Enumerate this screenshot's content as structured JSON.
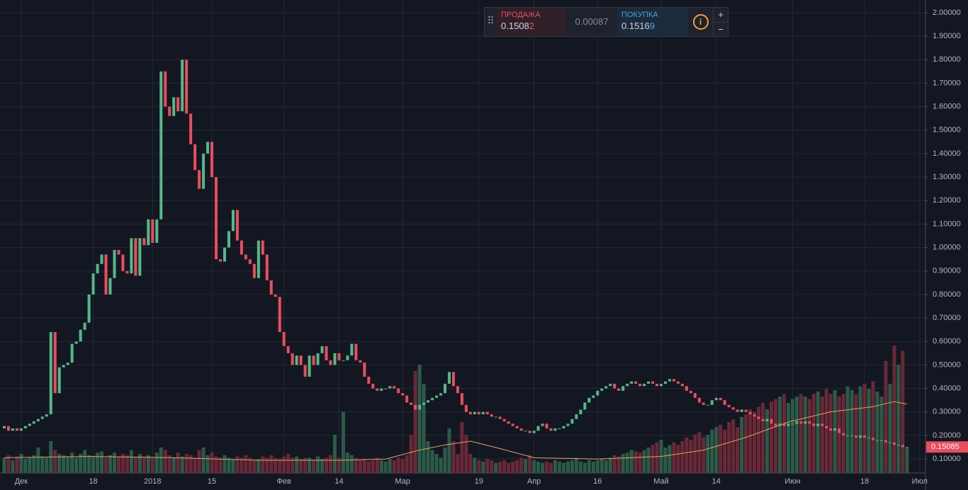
{
  "chart_data": {
    "type": "candlestick",
    "ylim": [
      0.04,
      2.054
    ],
    "yticks": [
      {
        "value": 0.1,
        "label": "0.10000"
      },
      {
        "value": 0.2,
        "label": "0.20000"
      },
      {
        "value": 0.3,
        "label": "0.30000"
      },
      {
        "value": 0.4,
        "label": "0.40000"
      },
      {
        "value": 0.5,
        "label": "0.50000"
      },
      {
        "value": 0.6,
        "label": "0.60000"
      },
      {
        "value": 0.7,
        "label": "0.70000"
      },
      {
        "value": 0.8,
        "label": "0.80000"
      },
      {
        "value": 0.9,
        "label": "0.90000"
      },
      {
        "value": 1.0,
        "label": "1.00000"
      },
      {
        "value": 1.1,
        "label": "1.10000"
      },
      {
        "value": 1.2,
        "label": "1.20000"
      },
      {
        "value": 1.3,
        "label": "1.30000"
      },
      {
        "value": 1.4,
        "label": "1.40000"
      },
      {
        "value": 1.5,
        "label": "1.50000"
      },
      {
        "value": 1.6,
        "label": "1.60000"
      },
      {
        "value": 1.7,
        "label": "1.70000"
      },
      {
        "value": 1.8,
        "label": "1.80000"
      },
      {
        "value": 1.9,
        "label": "1.90000"
      },
      {
        "value": 2.0,
        "label": "2.00000"
      }
    ],
    "xlim": [
      -1,
      217.2
    ],
    "xticks": [
      {
        "value": 4,
        "label": "Дек"
      },
      {
        "value": 21,
        "label": "18"
      },
      {
        "value": 35,
        "label": "2018"
      },
      {
        "value": 49,
        "label": "15"
      },
      {
        "value": 66,
        "label": "Фев"
      },
      {
        "value": 79,
        "label": "14"
      },
      {
        "value": 94,
        "label": "Мар"
      },
      {
        "value": 112,
        "label": "19"
      },
      {
        "value": 125,
        "label": "Апр"
      },
      {
        "value": 140,
        "label": "16"
      },
      {
        "value": 155,
        "label": "Май"
      },
      {
        "value": 168,
        "label": "14"
      },
      {
        "value": 186,
        "label": "Июн"
      },
      {
        "value": 203,
        "label": "18"
      },
      {
        "value": 216,
        "label": "Июл"
      }
    ],
    "grid": true,
    "up_color": "#53b987",
    "down_color": "#eb4d5c",
    "volume_up_color": "#2b5b48",
    "volume_down_color": "#6a2836",
    "ma_color": "#e8a05a",
    "close": [
      0.24,
      0.22,
      0.23,
      0.22,
      0.23,
      0.24,
      0.25,
      0.26,
      0.27,
      0.28,
      0.29,
      0.64,
      0.38,
      0.49,
      0.5,
      0.51,
      0.59,
      0.6,
      0.65,
      0.68,
      0.8,
      0.89,
      0.93,
      0.97,
      0.8,
      0.87,
      0.99,
      0.97,
      0.9,
      0.89,
      1.04,
      0.88,
      1.04,
      1.01,
      1.12,
      1.02,
      1.12,
      1.75,
      1.6,
      1.56,
      1.64,
      1.58,
      1.8,
      1.57,
      1.44,
      1.33,
      1.25,
      1.4,
      1.45,
      1.3,
      0.95,
      0.94,
      1.0,
      1.07,
      1.16,
      1.03,
      0.97,
      0.95,
      0.93,
      0.87,
      1.03,
      0.97,
      0.86,
      0.8,
      0.79,
      0.64,
      0.58,
      0.55,
      0.5,
      0.54,
      0.5,
      0.45,
      0.54,
      0.5,
      0.55,
      0.58,
      0.52,
      0.5,
      0.55,
      0.52,
      0.52,
      0.54,
      0.59,
      0.52,
      0.51,
      0.45,
      0.42,
      0.4,
      0.39,
      0.4,
      0.4,
      0.41,
      0.4,
      0.38,
      0.37,
      0.34,
      0.33,
      0.31,
      0.33,
      0.34,
      0.35,
      0.36,
      0.37,
      0.38,
      0.42,
      0.47,
      0.41,
      0.38,
      0.33,
      0.3,
      0.29,
      0.3,
      0.29,
      0.3,
      0.29,
      0.28,
      0.28,
      0.27,
      0.26,
      0.25,
      0.24,
      0.23,
      0.22,
      0.22,
      0.21,
      0.22,
      0.24,
      0.25,
      0.23,
      0.22,
      0.23,
      0.23,
      0.24,
      0.25,
      0.27,
      0.29,
      0.31,
      0.34,
      0.36,
      0.37,
      0.39,
      0.4,
      0.41,
      0.42,
      0.4,
      0.39,
      0.41,
      0.42,
      0.43,
      0.42,
      0.41,
      0.42,
      0.43,
      0.42,
      0.41,
      0.42,
      0.43,
      0.44,
      0.43,
      0.42,
      0.41,
      0.39,
      0.38,
      0.36,
      0.34,
      0.33,
      0.33,
      0.35,
      0.36,
      0.35,
      0.33,
      0.32,
      0.31,
      0.3,
      0.31,
      0.3,
      0.29,
      0.28,
      0.27,
      0.26,
      0.27,
      0.25,
      0.24,
      0.25,
      0.24,
      0.25,
      0.25,
      0.26,
      0.25,
      0.26,
      0.25,
      0.24,
      0.25,
      0.24,
      0.23,
      0.22,
      0.23,
      0.21,
      0.2,
      0.2,
      0.2,
      0.19,
      0.2,
      0.19,
      0.19,
      0.18,
      0.18,
      0.18,
      0.17,
      0.17,
      0.16,
      0.16,
      0.15,
      0.15
    ],
    "open": [
      0.23,
      0.24,
      0.22,
      0.23,
      0.22,
      0.23,
      0.24,
      0.25,
      0.26,
      0.27,
      0.28,
      0.29,
      0.64,
      0.38,
      0.49,
      0.5,
      0.51,
      0.59,
      0.6,
      0.65,
      0.68,
      0.8,
      0.89,
      0.93,
      0.97,
      0.8,
      0.87,
      0.99,
      0.97,
      0.9,
      0.89,
      1.04,
      0.88,
      1.04,
      1.01,
      1.12,
      1.02,
      1.12,
      1.75,
      1.6,
      1.56,
      1.64,
      1.58,
      1.8,
      1.57,
      1.44,
      1.33,
      1.25,
      1.4,
      1.45,
      1.3,
      0.95,
      0.94,
      1.0,
      1.07,
      1.16,
      1.03,
      0.97,
      0.95,
      0.93,
      0.87,
      1.03,
      0.97,
      0.86,
      0.8,
      0.79,
      0.64,
      0.58,
      0.55,
      0.5,
      0.54,
      0.5,
      0.45,
      0.54,
      0.5,
      0.55,
      0.58,
      0.52,
      0.5,
      0.55,
      0.52,
      0.52,
      0.54,
      0.59,
      0.52,
      0.51,
      0.45,
      0.42,
      0.4,
      0.39,
      0.4,
      0.4,
      0.41,
      0.4,
      0.38,
      0.37,
      0.34,
      0.33,
      0.31,
      0.33,
      0.34,
      0.35,
      0.36,
      0.37,
      0.38,
      0.42,
      0.47,
      0.41,
      0.38,
      0.33,
      0.3,
      0.29,
      0.3,
      0.29,
      0.3,
      0.29,
      0.28,
      0.28,
      0.27,
      0.26,
      0.25,
      0.24,
      0.23,
      0.22,
      0.22,
      0.21,
      0.22,
      0.24,
      0.25,
      0.23,
      0.22,
      0.23,
      0.23,
      0.24,
      0.25,
      0.27,
      0.29,
      0.31,
      0.34,
      0.36,
      0.37,
      0.39,
      0.4,
      0.41,
      0.42,
      0.4,
      0.39,
      0.41,
      0.42,
      0.43,
      0.42,
      0.41,
      0.42,
      0.43,
      0.42,
      0.41,
      0.42,
      0.43,
      0.44,
      0.43,
      0.42,
      0.41,
      0.39,
      0.38,
      0.36,
      0.34,
      0.33,
      0.33,
      0.35,
      0.36,
      0.35,
      0.33,
      0.32,
      0.31,
      0.3,
      0.31,
      0.3,
      0.29,
      0.28,
      0.27,
      0.26,
      0.27,
      0.25,
      0.24,
      0.25,
      0.24,
      0.25,
      0.25,
      0.26,
      0.25,
      0.26,
      0.25,
      0.24,
      0.25,
      0.24,
      0.23,
      0.22,
      0.23,
      0.21,
      0.2,
      0.2,
      0.2,
      0.19,
      0.2,
      0.19,
      0.19,
      0.18,
      0.18,
      0.18,
      0.17,
      0.17,
      0.16,
      0.16,
      0.15
    ],
    "vlim": [
      0,
      100
    ],
    "volume": [
      12,
      14,
      10,
      13,
      15,
      11,
      12,
      14,
      20,
      13,
      12,
      25,
      18,
      15,
      14,
      13,
      16,
      12,
      15,
      18,
      14,
      13,
      16,
      17,
      12,
      14,
      16,
      13,
      15,
      14,
      18,
      12,
      15,
      13,
      14,
      12,
      16,
      20,
      18,
      14,
      12,
      16,
      13,
      15,
      14,
      12,
      18,
      20,
      14,
      16,
      13,
      12,
      14,
      12,
      11,
      13,
      12,
      14,
      12,
      10,
      11,
      13,
      12,
      14,
      12,
      11,
      13,
      15,
      12,
      13,
      11,
      12,
      12,
      10,
      13,
      11,
      12,
      14,
      30,
      12,
      48,
      16,
      14,
      12,
      10,
      11,
      9,
      10,
      12,
      10,
      9,
      11,
      10,
      12,
      11,
      14,
      30,
      80,
      85,
      70,
      25,
      18,
      15,
      12,
      20,
      35,
      25,
      15,
      40,
      30,
      15,
      12,
      10,
      9,
      11,
      10,
      8,
      9,
      10,
      8,
      9,
      10,
      12,
      11,
      14,
      10,
      9,
      8,
      9,
      8,
      10,
      9,
      8,
      9,
      10,
      12,
      9,
      8,
      10,
      9,
      10,
      11,
      10,
      12,
      14,
      13,
      15,
      16,
      18,
      17,
      16,
      18,
      20,
      22,
      24,
      26,
      20,
      22,
      24,
      22,
      25,
      28,
      26,
      30,
      32,
      28,
      30,
      34,
      36,
      38,
      34,
      40,
      42,
      36,
      44,
      46,
      50,
      48,
      52,
      55,
      50,
      56,
      58,
      60,
      62,
      55,
      58,
      60,
      62,
      60,
      58,
      62,
      64,
      60,
      66,
      62,
      65,
      60,
      62,
      68,
      65,
      62,
      68,
      70,
      66,
      72,
      64,
      60,
      88,
      70,
      100,
      85,
      96,
      20
    ],
    "volume_ma": {
      "x": [
        0,
        20,
        40,
        60,
        80,
        90,
        98,
        104,
        110,
        116,
        125,
        140,
        155,
        165,
        175,
        185,
        195,
        205,
        210,
        213
      ],
      "values": [
        12,
        13,
        12,
        10,
        10,
        11,
        18,
        22,
        25,
        20,
        12,
        11,
        13,
        18,
        28,
        40,
        48,
        52,
        56,
        54
      ]
    },
    "last_price": 0.15085,
    "ticket": {
      "sell_label": "ПРОДАЖА",
      "sell_main": "0.1508",
      "sell_pip": "2",
      "spread": "0.00087",
      "buy_label": "ПОКУПКА",
      "buy_main": "0.1516",
      "buy_pip": "9",
      "plus": "+",
      "minus": "−",
      "info": "i"
    }
  }
}
